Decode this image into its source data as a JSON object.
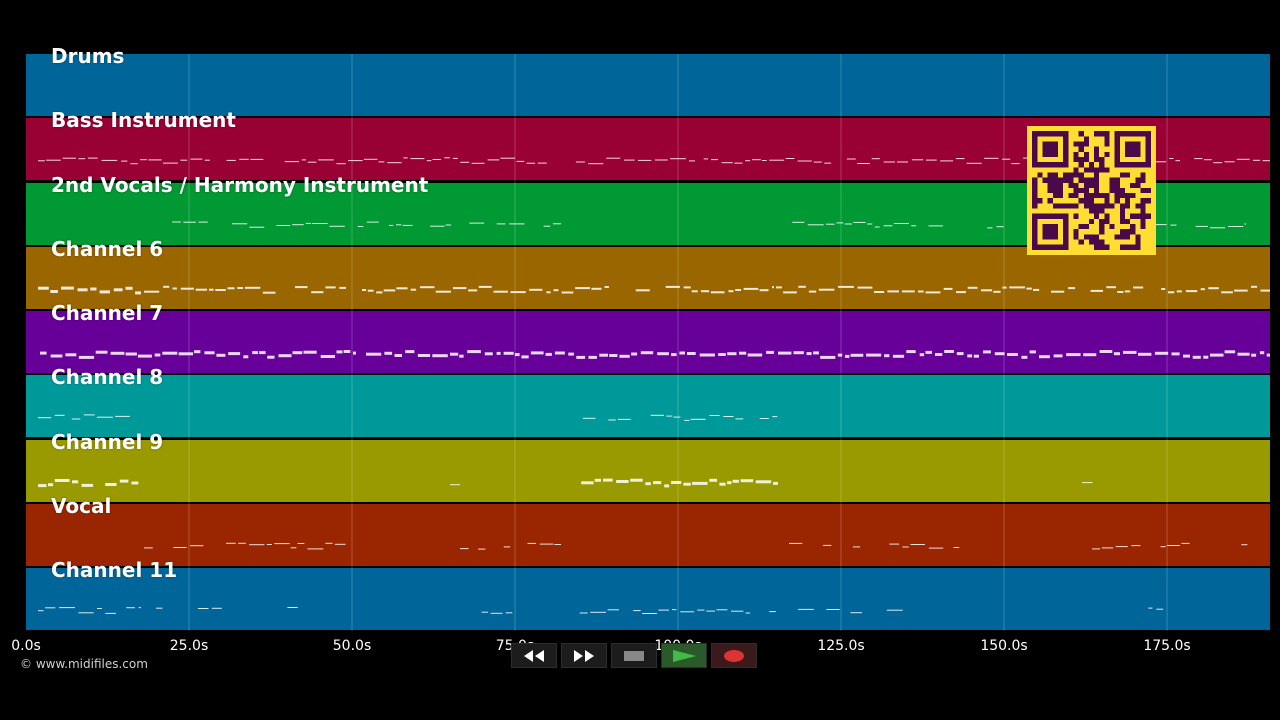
{
  "tracks": [
    {
      "label": "Drums",
      "color": "#006699"
    },
    {
      "label": "Bass Instrument",
      "color": "#990033"
    },
    {
      "label": "2nd Vocals / Harmony Instrument",
      "color": "#009933"
    },
    {
      "label": "Channel 6",
      "color": "#996600"
    },
    {
      "label": "Channel 7",
      "color": "#660099"
    },
    {
      "label": "Channel 8",
      "color": "#009999"
    },
    {
      "label": "Channel 9",
      "color": "#999900"
    },
    {
      "label": "Vocal",
      "color": "#992600"
    },
    {
      "label": "Channel 11",
      "color": "#006699"
    }
  ],
  "timeline": {
    "ticks": [
      "0.0s",
      "25.0s",
      "50.0s",
      "75.0s",
      "100.0s",
      "125.0s",
      "150.0s",
      "175.0s"
    ]
  },
  "copyright": "© www.midifiles.com",
  "transport": {
    "rewind_icon": "rewind-icon",
    "fast_forward_icon": "fast-forward-icon",
    "stop_icon": "stop-icon",
    "play_icon": "play-icon",
    "record_icon": "record-icon",
    "play_color": "#44bb44",
    "record_color": "#dd3333"
  },
  "qr": {
    "fg": "#4a0a4a",
    "bg": "#ffdd33"
  }
}
